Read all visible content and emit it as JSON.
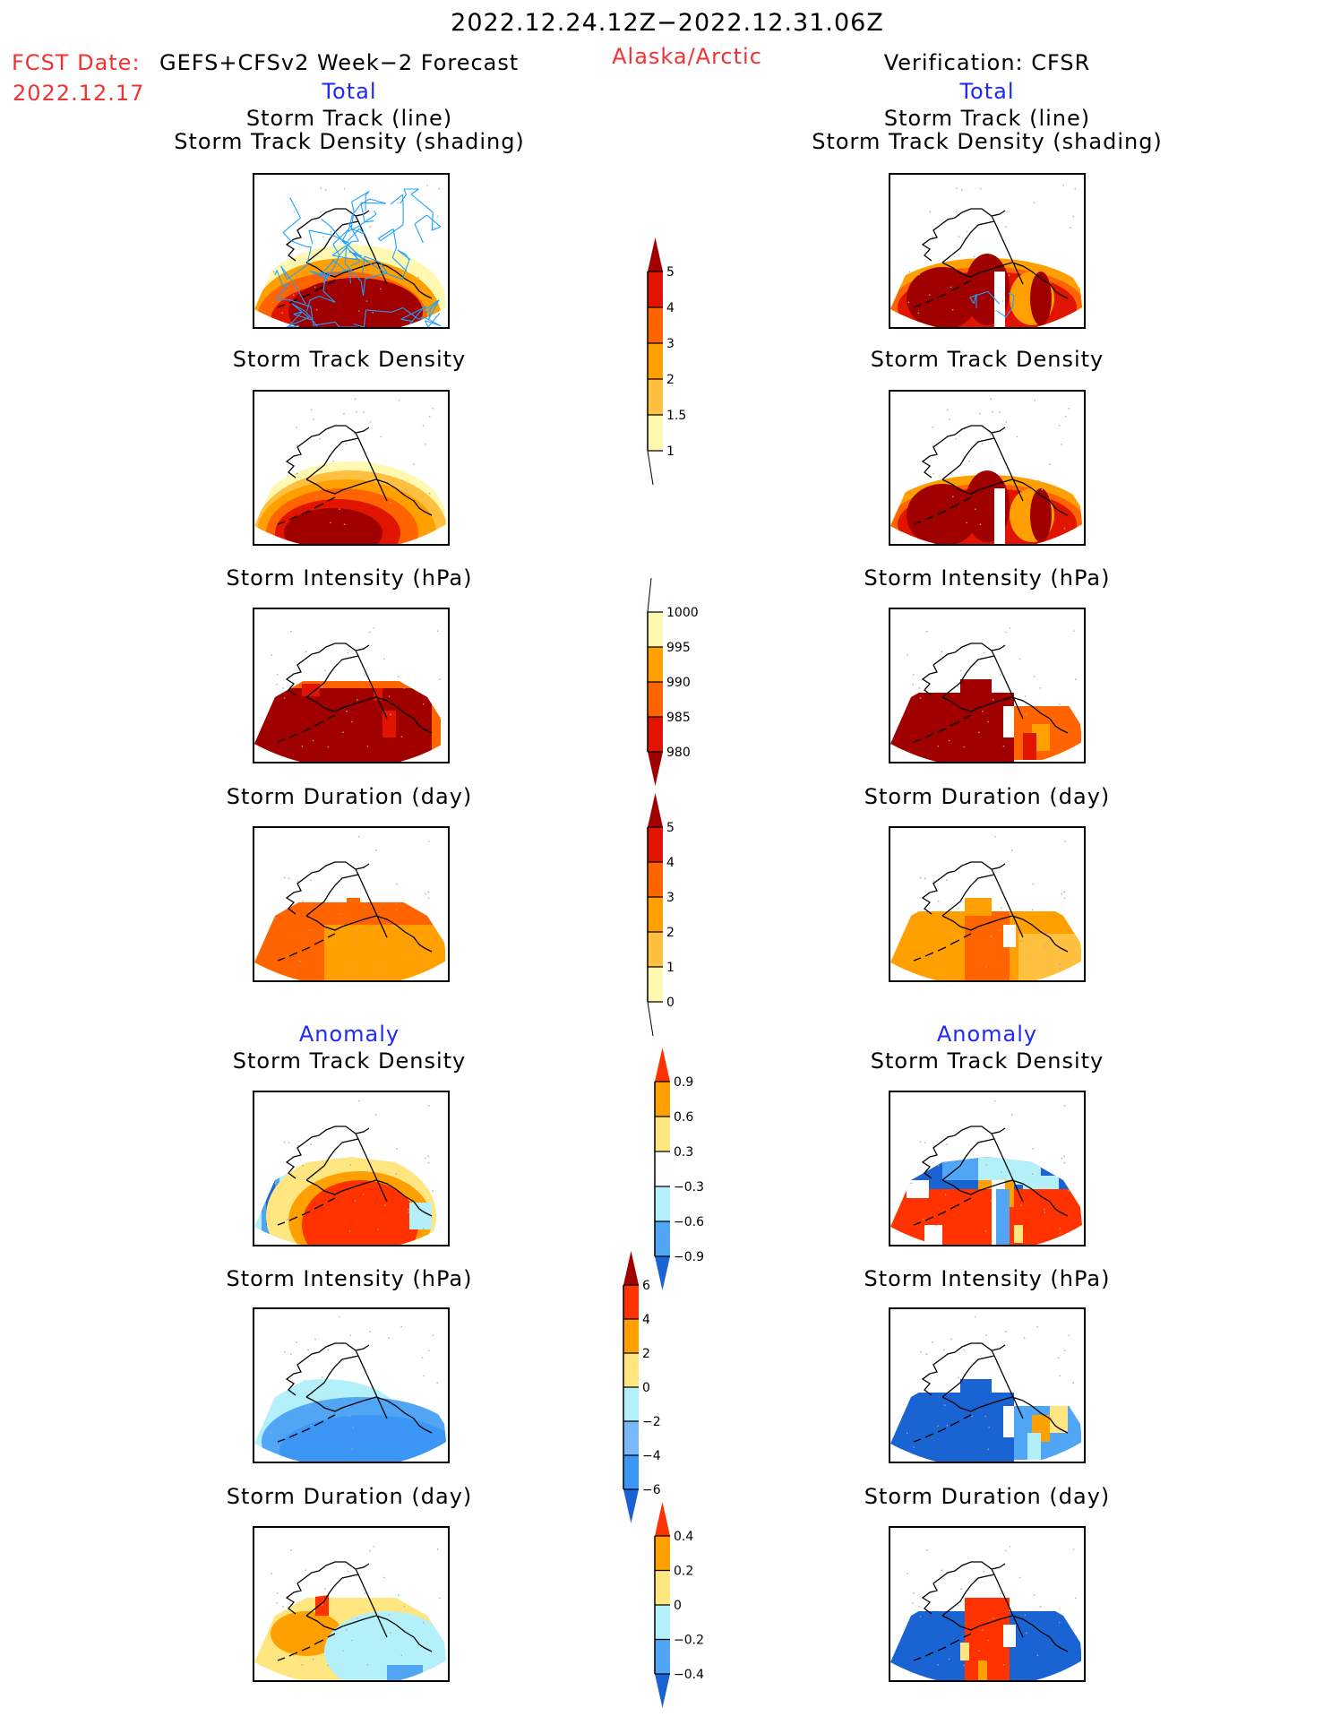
{
  "header": {
    "title": "2022.12.24.12Z−2022.12.31.06Z",
    "fcst_label": "FCST Date:",
    "fcst_source": "GEFS+CFSv2 Week−2 Forecast",
    "fcst_date": "2022.12.17",
    "region": "Alaska/Arctic",
    "verification": "Verification: CFSR"
  },
  "sections": {
    "total": "Total",
    "anomaly": "Anomaly"
  },
  "panel_titles": {
    "track_line": "Storm Track (line)",
    "track_shading": "Storm Track Density (shading)",
    "density": "Storm Track Density",
    "intensity": "Storm Intensity (hPa)",
    "duration": "Storm Duration (day)"
  },
  "colorbars": [
    {
      "name": "total-density",
      "labels": [
        "5",
        "4",
        "3",
        "2",
        "1.5",
        "1"
      ],
      "colors": [
        "#a00000",
        "#e01400",
        "#ff6400",
        "#ffa000",
        "#ffc040",
        "#fff8b0"
      ]
    },
    {
      "name": "total-intensity",
      "labels": [
        "1000",
        "995",
        "990",
        "985",
        "980"
      ],
      "colors": [
        "#fff8b0",
        "#ffa000",
        "#ff6400",
        "#e01400",
        "#a00000"
      ]
    },
    {
      "name": "total-duration",
      "labels": [
        "5",
        "4",
        "3",
        "2",
        "1",
        "0"
      ],
      "colors": [
        "#a00000",
        "#e01400",
        "#ff6400",
        "#ffa000",
        "#ffc040",
        "#fff8b0"
      ]
    },
    {
      "name": "anomaly-density",
      "labels": [
        "0.9",
        "0.6",
        "0.3",
        "−0.3",
        "−0.6",
        "−0.9"
      ],
      "colors": [
        "#ff3200",
        "#ffa000",
        "#ffe680",
        "#ffffff",
        "#b4f0fa",
        "#50a5f5",
        "#1964d2"
      ]
    },
    {
      "name": "anomaly-intensity",
      "labels": [
        "6",
        "4",
        "2",
        "0",
        "−2",
        "−4",
        "−6"
      ],
      "colors": [
        "#a00000",
        "#ff3200",
        "#ffa000",
        "#ffe680",
        "#b4f0fa",
        "#78b9fa",
        "#3c96f5",
        "#1964d2"
      ]
    },
    {
      "name": "anomaly-duration",
      "labels": [
        "0.4",
        "0.2",
        "0",
        "−0.2",
        "−0.4"
      ],
      "colors": [
        "#ff3200",
        "#ffa000",
        "#ffe680",
        "#b4f0fa",
        "#50a5f5",
        "#1964d2"
      ]
    }
  ]
}
